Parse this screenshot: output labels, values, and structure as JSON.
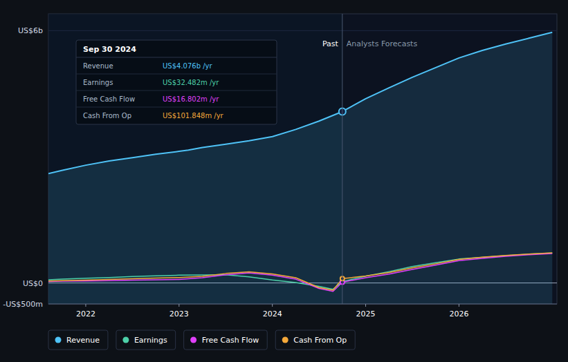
{
  "chart_data": {
    "type": "line",
    "xlim": [
      2021.6,
      2027.05
    ],
    "xticks": [
      2022,
      2023,
      2024,
      2025,
      2026
    ],
    "ylim": [
      -500,
      6400
    ],
    "yticks": [
      {
        "value": -500,
        "label": "-US$500m"
      },
      {
        "value": 0,
        "label": "US$0"
      },
      {
        "value": 6000,
        "label": "US$6b"
      }
    ],
    "grid": true,
    "legend": "bottom",
    "series": [
      {
        "name": "Revenue",
        "color": "#4fc3f7",
        "x": [
          2021.6,
          2021.75,
          2022.0,
          2022.25,
          2022.5,
          2022.75,
          2023.0,
          2023.1,
          2023.25,
          2023.5,
          2023.75,
          2024.0,
          2024.25,
          2024.5,
          2024.75,
          2025.0,
          2025.25,
          2025.5,
          2025.75,
          2026.0,
          2026.25,
          2026.5,
          2026.75,
          2027.0
        ],
        "values": [
          2600,
          2680,
          2800,
          2900,
          2980,
          3060,
          3130,
          3160,
          3220,
          3300,
          3380,
          3480,
          3650,
          3850,
          4076,
          4380,
          4640,
          4890,
          5120,
          5350,
          5530,
          5680,
          5820,
          5960
        ]
      },
      {
        "name": "Earnings",
        "color": "#4dd0a8",
        "x": [
          2021.6,
          2021.75,
          2022.0,
          2022.25,
          2022.5,
          2022.75,
          2023.0,
          2023.25,
          2023.5,
          2023.75,
          2024.0,
          2024.25,
          2024.5,
          2024.65,
          2024.75,
          2025.0,
          2025.25,
          2025.5,
          2025.75,
          2026.0,
          2026.25,
          2026.5,
          2026.75,
          2027.0
        ],
        "values": [
          75,
          90,
          110,
          130,
          155,
          170,
          185,
          190,
          195,
          145,
          70,
          10,
          -80,
          -150,
          32,
          160,
          270,
          390,
          480,
          570,
          610,
          650,
          685,
          710
        ]
      },
      {
        "name": "Free Cash Flow",
        "color": "#e040fb",
        "x": [
          2021.6,
          2021.75,
          2022.0,
          2022.25,
          2022.5,
          2022.75,
          2023.0,
          2023.25,
          2023.5,
          2023.75,
          2024.0,
          2024.25,
          2024.5,
          2024.65,
          2024.75,
          2025.0,
          2025.25,
          2025.5,
          2025.75,
          2026.0,
          2026.25,
          2026.5,
          2026.75,
          2027.0
        ],
        "values": [
          35,
          42,
          48,
          55,
          65,
          75,
          85,
          125,
          195,
          240,
          185,
          90,
          -130,
          -200,
          17,
          125,
          210,
          320,
          425,
          530,
          585,
          635,
          672,
          700
        ]
      },
      {
        "name": "Cash From Op",
        "color": "#f4a83a",
        "x": [
          2021.6,
          2021.75,
          2022.0,
          2022.25,
          2022.5,
          2022.75,
          2023.0,
          2023.25,
          2023.5,
          2023.75,
          2024.0,
          2024.25,
          2024.5,
          2024.65,
          2024.75,
          2025.0,
          2025.25,
          2025.5,
          2025.75,
          2026.0,
          2026.25,
          2026.5,
          2026.75,
          2027.0
        ],
        "values": [
          45,
          55,
          65,
          82,
          98,
          118,
          128,
          158,
          225,
          265,
          215,
          125,
          -110,
          -170,
          102,
          165,
          248,
          358,
          455,
          558,
          615,
          655,
          688,
          715
        ]
      }
    ],
    "annotations": [
      {
        "x": 2024.75,
        "labels": [
          "Past",
          "Analysts Forecasts"
        ]
      }
    ],
    "tooltip": {
      "title": "Sep 30 2024",
      "rows": [
        {
          "label": "Revenue",
          "text": "US$4.076b /yr",
          "color": "#4fc3f7"
        },
        {
          "label": "Earnings",
          "text": "US$32.482m /yr",
          "color": "#4dd0a8"
        },
        {
          "label": "Free Cash Flow",
          "text": "US$16.802m /yr",
          "color": "#e040fb"
        },
        {
          "label": "Cash From Op",
          "text": "US$101.848m /yr",
          "color": "#f4a83a"
        }
      ]
    }
  }
}
